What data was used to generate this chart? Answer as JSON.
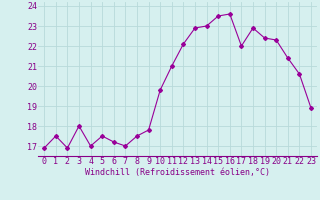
{
  "x": [
    0,
    1,
    2,
    3,
    4,
    5,
    6,
    7,
    8,
    9,
    10,
    11,
    12,
    13,
    14,
    15,
    16,
    17,
    18,
    19,
    20,
    21,
    22,
    23
  ],
  "y": [
    16.9,
    17.5,
    16.9,
    18.0,
    17.0,
    17.5,
    17.2,
    17.0,
    17.5,
    17.8,
    19.8,
    21.0,
    22.1,
    22.9,
    23.0,
    23.5,
    23.6,
    22.0,
    22.9,
    22.4,
    22.3,
    21.4,
    20.6,
    18.9
  ],
  "line_color": "#990099",
  "marker": "D",
  "markersize": 2.0,
  "linewidth": 0.8,
  "xlabel": "Windchill (Refroidissement éolien,°C)",
  "xlim": [
    -0.5,
    23.5
  ],
  "ylim": [
    16.5,
    24.2
  ],
  "yticks": [
    17,
    18,
    19,
    20,
    21,
    22,
    23,
    24
  ],
  "xtick_labels": [
    "0",
    "1",
    "2",
    "3",
    "4",
    "5",
    "6",
    "7",
    "8",
    "9",
    "10",
    "11",
    "12",
    "13",
    "14",
    "15",
    "16",
    "17",
    "18",
    "19",
    "20",
    "21",
    "22",
    "23"
  ],
  "bg_color": "#d6f0ef",
  "grid_color": "#b8dada",
  "xlabel_fontsize": 6.0,
  "tick_fontsize": 6.0,
  "label_color": "#880088"
}
